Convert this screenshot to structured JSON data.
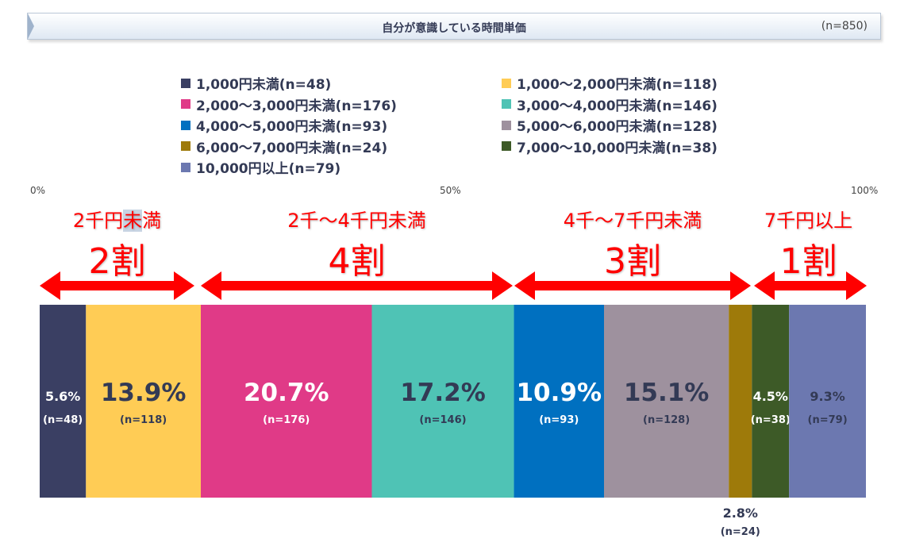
{
  "header": {
    "title": "自分が意識している時間単価",
    "n": "(n=850)"
  },
  "axis": {
    "tick_0": "0%",
    "tick_50": "50%",
    "tick_100": "100%"
  },
  "groups": [
    {
      "small_pre": "2千円",
      "small_hl": "未",
      "small_post": "満",
      "big": "2割"
    },
    {
      "small": "2千～4千円未満",
      "big": "4割"
    },
    {
      "small": "4千～7千円未満",
      "big": "3割"
    },
    {
      "small": "7千円以上",
      "big": "1割"
    }
  ],
  "chart_data": {
    "type": "bar",
    "orientation": "horizontal-stacked",
    "title": "自分が意識している時間単価",
    "total_n": "(n=850)",
    "xlim": [
      0,
      100
    ],
    "legend_placement": "top",
    "series": [
      {
        "name": "1,000円未満(n=48)",
        "value": 5.6,
        "label": "5.6%",
        "n_label": "(n=48)",
        "color": "#3a3f63",
        "text_color": "#ffffff"
      },
      {
        "name": "1,000～2,000円未満(n=118)",
        "value": 13.9,
        "label": "13.9%",
        "n_label": "(n=118)",
        "color": "#ffcc55",
        "text_color": "#333a55"
      },
      {
        "name": "2,000～3,000円未満(n=176)",
        "value": 20.7,
        "label": "20.7%",
        "n_label": "(n=176)",
        "color": "#e03a87",
        "text_color": "#ffffff"
      },
      {
        "name": "3,000～4,000円未満(n=146)",
        "value": 17.2,
        "label": "17.2%",
        "n_label": "(n=146)",
        "color": "#4fc3b5",
        "text_color": "#333a55"
      },
      {
        "name": "4,000～5,000円未満(n=93)",
        "value": 10.9,
        "label": "10.9%",
        "n_label": "(n=93)",
        "color": "#0070c0",
        "text_color": "#ffffff"
      },
      {
        "name": "5,000～6,000円未満(n=128)",
        "value": 15.1,
        "label": "15.1%",
        "n_label": "(n=128)",
        "color": "#9e919e",
        "text_color": "#333a55"
      },
      {
        "name": "6,000～7,000円未満(n=24)",
        "value": 2.8,
        "label": "2.8%",
        "n_label": "(n=24)",
        "color": "#9e7a0a",
        "text_color": "#333a55"
      },
      {
        "name": "7,000～10,000円未満(n=38)",
        "value": 4.5,
        "label": "4.5%",
        "n_label": "(n=38)",
        "color": "#3d5a27",
        "text_color": "#ffffff"
      },
      {
        "name": "10,000円以上(n=79)",
        "value": 9.3,
        "label": "9.3%",
        "n_label": "(n=79)",
        "color": "#6c78b0",
        "text_color": "#333a55"
      }
    ]
  }
}
